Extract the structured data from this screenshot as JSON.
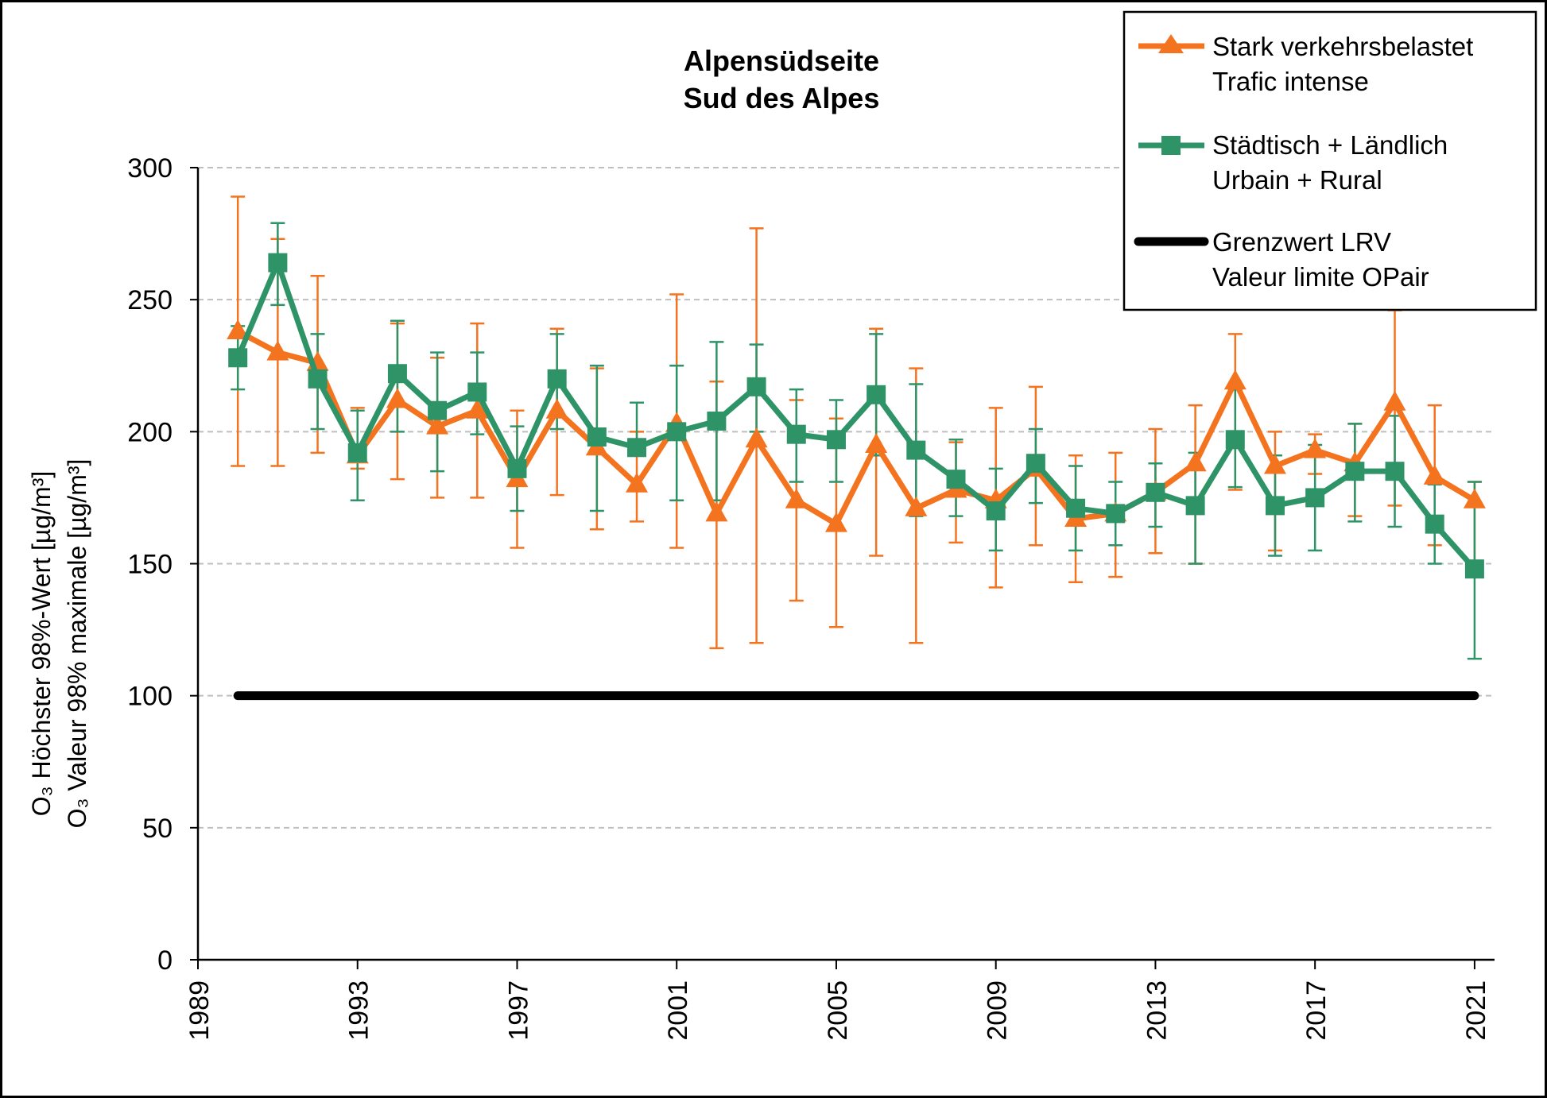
{
  "chart_data": {
    "type": "line",
    "title": [
      "Alpensüdseite",
      "Sud des Alpes"
    ],
    "ylabel": [
      "Höchster 98%-Wert [µg/m³]",
      "Valeur 98% maximale [µg/m³]"
    ],
    "ylabel_prefix": "O₃ ",
    "ylim": [
      0,
      300
    ],
    "yticks": [
      0,
      50,
      100,
      150,
      200,
      250,
      300
    ],
    "xlim": [
      1989,
      2021.5
    ],
    "xticks": [
      1989,
      1993,
      1997,
      2001,
      2005,
      2009,
      2013,
      2017,
      2021
    ],
    "grid": "horizontal dashed",
    "legend_position": "top-right",
    "x": [
      1990,
      1991,
      1992,
      1993,
      1994,
      1995,
      1996,
      1997,
      1998,
      1999,
      2000,
      2001,
      2002,
      2003,
      2004,
      2005,
      2006,
      2007,
      2008,
      2009,
      2010,
      2011,
      2012,
      2013,
      2014,
      2015,
      2016,
      2017,
      2018,
      2019,
      2020,
      2021
    ],
    "series": [
      {
        "name": "Stark verkehrsbelastet",
        "name2": "Trafic intense",
        "color": "#F4731F",
        "marker": "triangle",
        "values": [
          238,
          230,
          226,
          191,
          212,
          202,
          208,
          182,
          208,
          194,
          180,
          203,
          169,
          197,
          174,
          165,
          195,
          171,
          178,
          174,
          186,
          167,
          169,
          177,
          188,
          219,
          187,
          193,
          188,
          211,
          183,
          174
        ],
        "err_low": [
          187,
          187,
          192,
          186,
          182,
          175,
          175,
          156,
          176,
          163,
          166,
          156,
          118,
          120,
          136,
          126,
          153,
          120,
          158,
          141,
          157,
          143,
          145,
          154,
          150,
          178,
          155,
          184,
          168,
          172,
          157,
          149
        ],
        "err_high": [
          289,
          273,
          259,
          209,
          241,
          228,
          241,
          208,
          239,
          224,
          200,
          252,
          219,
          277,
          212,
          205,
          239,
          224,
          196,
          209,
          217,
          191,
          192,
          201,
          210,
          237,
          200,
          199,
          203,
          246,
          210,
          181
        ]
      },
      {
        "name": "Städtisch + Ländlich",
        "name2": "Urbain + Rural",
        "color": "#2E9468",
        "marker": "square",
        "values": [
          228,
          264,
          220,
          192,
          222,
          208,
          215,
          186,
          220,
          198,
          194,
          200,
          204,
          217,
          199,
          197,
          214,
          193,
          182,
          170,
          188,
          171,
          169,
          177,
          172,
          197,
          172,
          175,
          185,
          185,
          165,
          148
        ],
        "err_low": [
          216,
          248,
          201,
          174,
          200,
          185,
          199,
          170,
          201,
          170,
          194,
          174,
          174,
          200,
          181,
          181,
          191,
          168,
          168,
          155,
          173,
          155,
          157,
          164,
          150,
          179,
          153,
          155,
          166,
          164,
          150,
          114
        ],
        "err_high": [
          240,
          279,
          237,
          208,
          242,
          230,
          230,
          202,
          237,
          225,
          211,
          225,
          234,
          233,
          216,
          212,
          237,
          218,
          197,
          186,
          201,
          187,
          181,
          188,
          192,
          216,
          191,
          195,
          203,
          206,
          180,
          181
        ]
      }
    ],
    "limit_line": {
      "name": "Grenzwert LRV",
      "name2": "Valeur limite OPair",
      "value": 100,
      "x_from": 1990,
      "x_to": 2021,
      "color": "#000000"
    }
  }
}
